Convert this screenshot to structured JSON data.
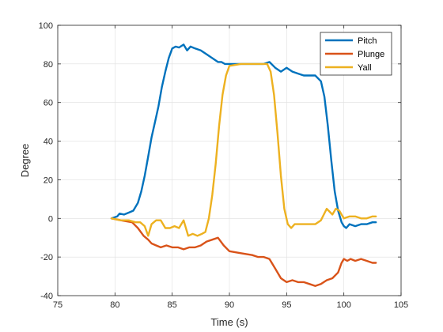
{
  "chart_data": {
    "type": "line",
    "title": "",
    "xlabel": "Time (s)",
    "ylabel": "Degree",
    "xlim": [
      75,
      105
    ],
    "ylim": [
      -40,
      100
    ],
    "xticks": [
      75,
      80,
      85,
      90,
      95,
      100,
      105
    ],
    "yticks": [
      -40,
      -20,
      0,
      20,
      40,
      60,
      80,
      100
    ],
    "grid": true,
    "legend_position": "top-right",
    "series": [
      {
        "name": "Pitch",
        "color": "#0072BD",
        "x": [
          79.7,
          80.2,
          80.4,
          80.8,
          81.2,
          81.6,
          82.0,
          82.3,
          82.6,
          82.9,
          83.2,
          83.5,
          83.8,
          84.1,
          84.4,
          84.7,
          85.0,
          85.3,
          85.6,
          86.0,
          86.3,
          86.6,
          87.0,
          87.5,
          88.0,
          88.5,
          89.0,
          89.3,
          89.6,
          90.0,
          91.0,
          92.0,
          93.0,
          93.5,
          94.0,
          94.5,
          95.0,
          95.5,
          96.0,
          96.5,
          97.0,
          97.5,
          98.0,
          98.3,
          98.6,
          98.9,
          99.2,
          99.5,
          99.8,
          100.0,
          100.2,
          100.5,
          101.0,
          101.5,
          102.0,
          102.5,
          102.8
        ],
        "y": [
          0,
          1,
          2.5,
          2,
          3,
          4,
          8,
          14,
          22,
          32,
          42,
          50,
          58,
          68,
          76,
          83,
          88,
          89,
          88.5,
          90,
          87,
          89,
          88,
          87,
          85,
          83,
          81,
          81,
          80,
          80,
          80,
          80,
          80,
          81,
          78,
          76,
          78,
          76,
          75,
          74,
          74,
          74,
          71,
          63,
          48,
          30,
          14,
          4,
          -2,
          -4,
          -5,
          -3,
          -4,
          -3,
          -3,
          -2,
          -2
        ]
      },
      {
        "name": "Plunge",
        "color": "#D95319",
        "x": [
          79.7,
          80.5,
          81.5,
          82.0,
          82.5,
          82.9,
          83.2,
          83.6,
          84.0,
          84.5,
          85.0,
          85.5,
          86.0,
          86.5,
          87.0,
          87.5,
          88.0,
          88.5,
          89.0,
          89.5,
          90.0,
          91.0,
          92.0,
          92.5,
          93.0,
          93.5,
          94.0,
          94.5,
          95.0,
          95.5,
          96.0,
          96.5,
          97.0,
          97.5,
          98.0,
          98.5,
          99.0,
          99.5,
          99.8,
          100.0,
          100.3,
          100.6,
          101.0,
          101.5,
          102.0,
          102.5,
          102.8
        ],
        "y": [
          0,
          -1,
          -2,
          -5,
          -9,
          -11,
          -13,
          -14,
          -15,
          -14,
          -15,
          -15,
          -16,
          -15,
          -15,
          -14,
          -12,
          -11,
          -10,
          -14,
          -17,
          -18,
          -19,
          -20,
          -20,
          -21,
          -26,
          -31,
          -33,
          -32,
          -33,
          -33,
          -34,
          -35,
          -34,
          -32,
          -31,
          -28,
          -23,
          -21,
          -22,
          -21,
          -22,
          -21,
          -22,
          -23,
          -23
        ]
      },
      {
        "name": "Yall",
        "color": "#EDB120",
        "x": [
          79.7,
          80.5,
          81.2,
          81.8,
          82.2,
          82.6,
          82.9,
          83.2,
          83.6,
          84.0,
          84.4,
          84.8,
          85.2,
          85.6,
          86.0,
          86.4,
          86.8,
          87.2,
          87.6,
          87.9,
          88.2,
          88.5,
          88.8,
          89.1,
          89.4,
          89.7,
          90.0,
          91.0,
          92.0,
          92.5,
          93.0,
          93.3,
          93.6,
          93.9,
          94.2,
          94.5,
          94.8,
          95.1,
          95.4,
          95.7,
          96.0,
          96.5,
          97.0,
          97.5,
          98.0,
          98.5,
          99.0,
          99.3,
          99.6,
          100.0,
          100.5,
          101.0,
          101.5,
          102.0,
          102.5,
          102.8
        ],
        "y": [
          0,
          -1,
          -1,
          -2,
          -2,
          -4,
          -9,
          -3,
          -1,
          -1,
          -5,
          -5,
          -4,
          -5,
          -1,
          -9,
          -8,
          -9,
          -8,
          -7,
          0,
          12,
          28,
          48,
          64,
          74,
          79,
          80,
          80,
          80,
          80,
          80,
          76,
          64,
          44,
          22,
          5,
          -3,
          -5,
          -3,
          -3,
          -3,
          -3,
          -3,
          -1,
          5,
          2,
          5,
          4,
          0,
          1,
          1,
          0,
          0,
          1,
          1
        ]
      }
    ]
  }
}
